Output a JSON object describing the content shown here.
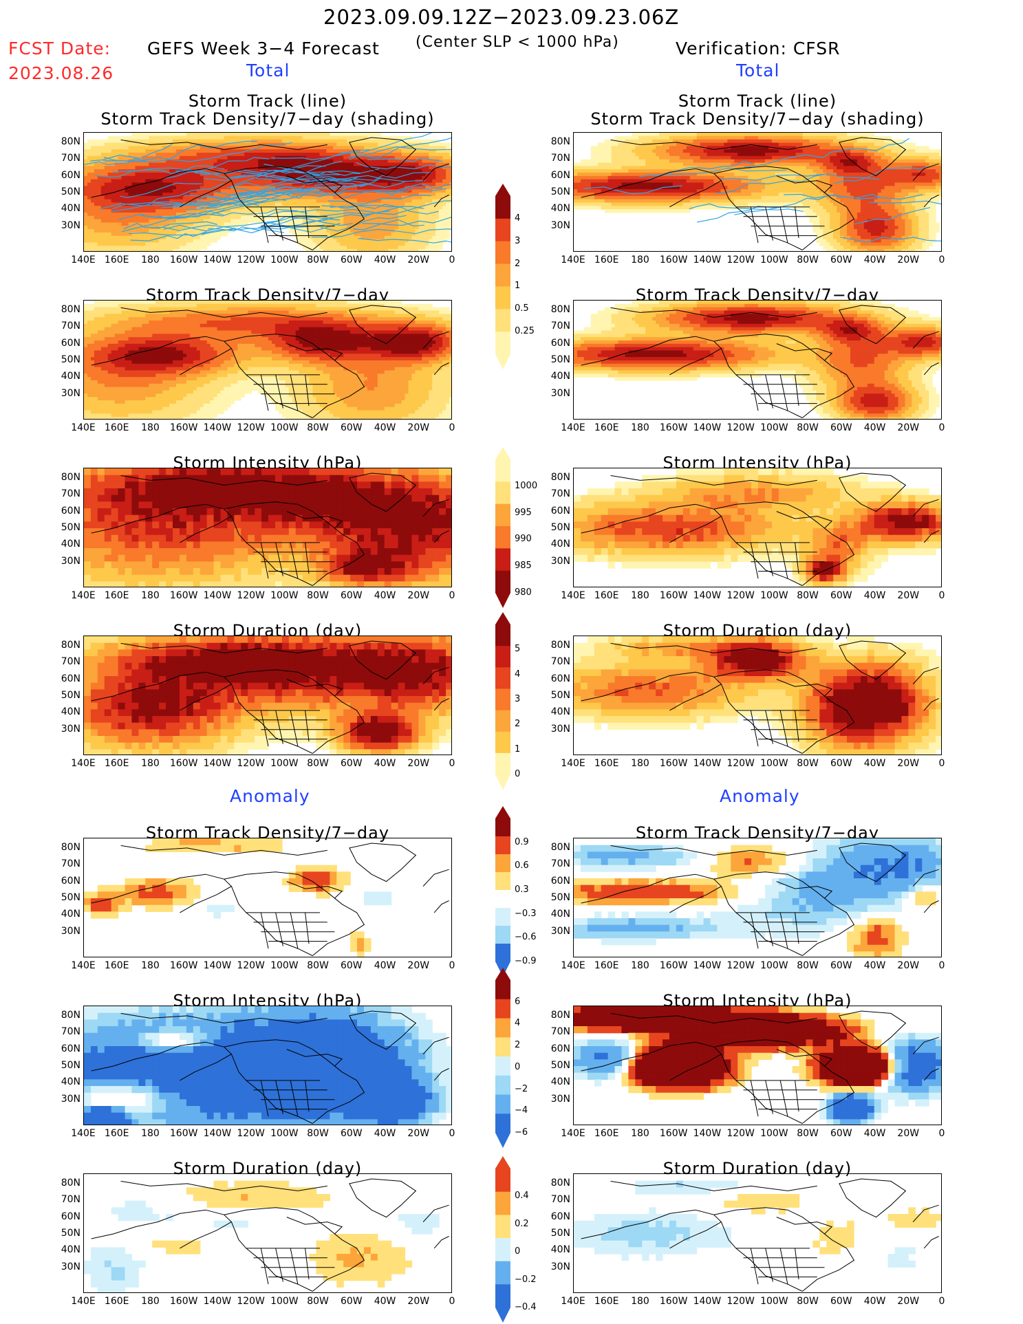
{
  "header": {
    "date_range": "2023.09.09.12Z−2023.09.23.06Z",
    "fcst_label": "FCST Date:",
    "fcst_date": "2023.08.26",
    "model_title": "GEFS Week 3−4 Forecast",
    "criterion": "(Center SLP < 1000 hPa)",
    "verification": "Verification: CFSR",
    "left_total": "Total",
    "right_total": "Total",
    "left_anomaly": "Anomaly",
    "right_anomaly": "Anomaly"
  },
  "panel_titles": {
    "track_line": "Storm Track (line)",
    "track_density_shading": "Storm Track Density/7−day (shading)",
    "track_density": "Storm Track Density/7−day",
    "intensity": "Storm Intensity (hPa)",
    "duration": "Storm Duration (day)"
  },
  "axes": {
    "lat_labels": [
      "80N",
      "70N",
      "60N",
      "50N",
      "40N",
      "30N"
    ],
    "lon_labels": [
      "140E",
      "160E",
      "180",
      "160W",
      "140W",
      "120W",
      "100W",
      "80W",
      "60W",
      "40W",
      "20W",
      "0"
    ]
  },
  "colorbars": {
    "density": [
      "4",
      "3",
      "2",
      "1",
      "0.5",
      "0.25"
    ],
    "intensity": [
      "1000",
      "995",
      "990",
      "985",
      "980"
    ],
    "duration": [
      "5",
      "4",
      "3",
      "2",
      "1",
      "0"
    ],
    "density_anom": [
      "0.9",
      "0.6",
      "0.3",
      "−0.3",
      "−0.6",
      "−0.9"
    ],
    "intensity_anom": [
      "6",
      "4",
      "2",
      "0",
      "−2",
      "−4",
      "−6"
    ],
    "duration_anom": [
      "0.4",
      "0.2",
      "0",
      "−0.2",
      "−0.4"
    ]
  },
  "colors": {
    "warm": [
      "#fff5b0",
      "#ffe07a",
      "#fec84a",
      "#fca53a",
      "#f97a2a",
      "#e6451f",
      "#c81e16",
      "#8e0b0b"
    ],
    "cool": [
      "#d4f1fb",
      "#9dd8f5",
      "#64b0ef",
      "#2e71d8",
      "#1a55c4"
    ],
    "track_lines": "#2fa4e7"
  }
}
